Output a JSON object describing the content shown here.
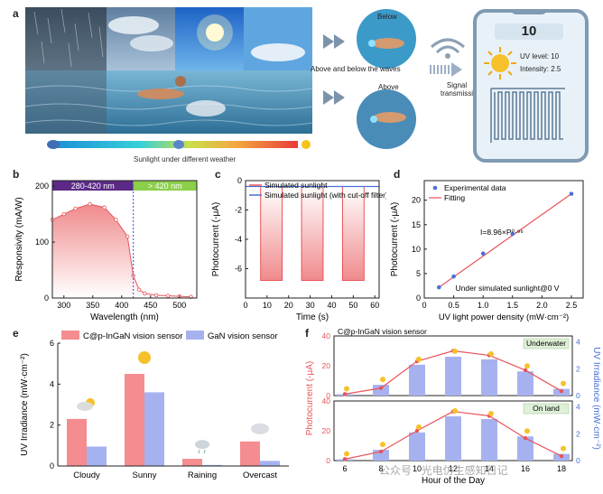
{
  "panel_a": {
    "label": "a",
    "weather_caption": "Sunlight under different weather",
    "below_label": "Below",
    "above_label": "Above",
    "waves_caption": "Above and below the waves",
    "signal_caption_1": "Signal",
    "signal_caption_2": "transmission",
    "phone": {
      "display": "10",
      "uv_level": "UV level: 10",
      "intensity": "Intensity: 2.5"
    }
  },
  "chart_data": [
    {
      "id": "b",
      "type": "area",
      "xlabel": "Wavelength (nm)",
      "ylabel": "Responsivity (mA/W)",
      "xlim": [
        280,
        530
      ],
      "ylim": [
        0,
        210
      ],
      "xticks": [
        300,
        350,
        400,
        450,
        500
      ],
      "yticks": [
        0,
        100,
        200
      ],
      "band_labels": [
        "280-420 nm",
        "> 420 nm"
      ],
      "cutoff": 420,
      "x": [
        280,
        300,
        320,
        345,
        370,
        390,
        410,
        420,
        430,
        440,
        460,
        480,
        500,
        520
      ],
      "y": [
        140,
        150,
        160,
        168,
        162,
        140,
        110,
        40,
        15,
        8,
        5,
        4,
        3,
        2
      ]
    },
    {
      "id": "c",
      "type": "line",
      "xlabel": "Time (s)",
      "ylabel": "Photocurrent (-μA)",
      "xlim": [
        0,
        62
      ],
      "ylim": [
        0,
        -8
      ],
      "xticks": [
        0,
        10,
        20,
        30,
        40,
        50,
        60
      ],
      "yticks": [
        0,
        -2,
        -4,
        -6
      ],
      "series": [
        {
          "name": "Simulated sunlight",
          "color": "#e8545a",
          "on_intervals": [
            [
              7,
              17
            ],
            [
              26,
              36
            ],
            [
              45,
              55
            ]
          ],
          "on_value": -6.8,
          "off_value": -0.4
        },
        {
          "name": "Simulated sunlight (with cut-off filter)",
          "color": "#4a6fd6",
          "value": -0.4
        }
      ]
    },
    {
      "id": "d",
      "type": "scatter",
      "xlabel": "UV light power density (mW·cm⁻²)",
      "ylabel": "Photocurrent (-μA)",
      "xlim": [
        0,
        2.7
      ],
      "ylim": [
        0,
        24
      ],
      "xticks": [
        0,
        0.5,
        1.0,
        1.5,
        2.0,
        2.5
      ],
      "yticks": [
        0,
        5,
        10,
        15,
        20
      ],
      "series": [
        {
          "name": "Experimental data",
          "x": [
            0.25,
            0.5,
            1.0,
            1.5,
            2.5
          ],
          "y": [
            2.2,
            4.4,
            9.1,
            13.1,
            21.3
          ]
        },
        {
          "name": "Fitting",
          "equation": "I=8.96×P⁰·⁹⁶"
        }
      ],
      "annotation": "Under simulated sunlight@0 V"
    },
    {
      "id": "e",
      "type": "bar",
      "ylabel": "UV Irradiance (mW·cm⁻²)",
      "ylim": [
        0,
        6
      ],
      "yticks": [
        0,
        2,
        4,
        6
      ],
      "categories": [
        "Cloudy",
        "Sunny",
        "Raining",
        "Overcast"
      ],
      "series": [
        {
          "name": "C@p-InGaN vision sensor",
          "values": [
            2.3,
            4.5,
            0.35,
            1.2
          ]
        },
        {
          "name": "GaN vision sensor",
          "values": [
            0.95,
            3.6,
            0.05,
            0.25
          ]
        }
      ]
    },
    {
      "id": "f",
      "type": "bar",
      "title": "C@p-InGaN  vision sensor",
      "xlabel": "Hour of the Day",
      "ylabel": "Photocurrent (-μA)",
      "y2label": "UV Irradiance (mW·cm⁻²)",
      "categories": [
        6,
        8,
        10,
        12,
        14,
        16,
        18
      ],
      "panels": [
        {
          "label": "Underwater",
          "ylim": [
            0,
            40
          ],
          "yticks": [
            0,
            20,
            40
          ],
          "y2ticks": [
            0,
            2,
            4
          ],
          "bars": [
            0.1,
            0.8,
            2.3,
            2.9,
            2.7,
            1.8,
            0.5
          ],
          "line": [
            1,
            5,
            23,
            30,
            27,
            17,
            3
          ]
        },
        {
          "label": "On land",
          "ylim": [
            0,
            40
          ],
          "yticks": [
            0,
            20,
            40
          ],
          "y2ticks": [
            0,
            2,
            4
          ],
          "bars": [
            0.1,
            0.8,
            2.1,
            3.3,
            3.1,
            1.8,
            0.5
          ],
          "line": [
            1,
            6,
            20,
            33,
            30,
            15,
            3
          ]
        }
      ]
    }
  ],
  "colors": {
    "red": "#e8545a",
    "blue": "#4a6fd6",
    "pink": "#f4a6a8",
    "lightblue": "#aab6f2",
    "purple": "#5b2a86",
    "green": "#8ccf4a"
  },
  "watermark": "公众号 · 光电仿生感知日记"
}
